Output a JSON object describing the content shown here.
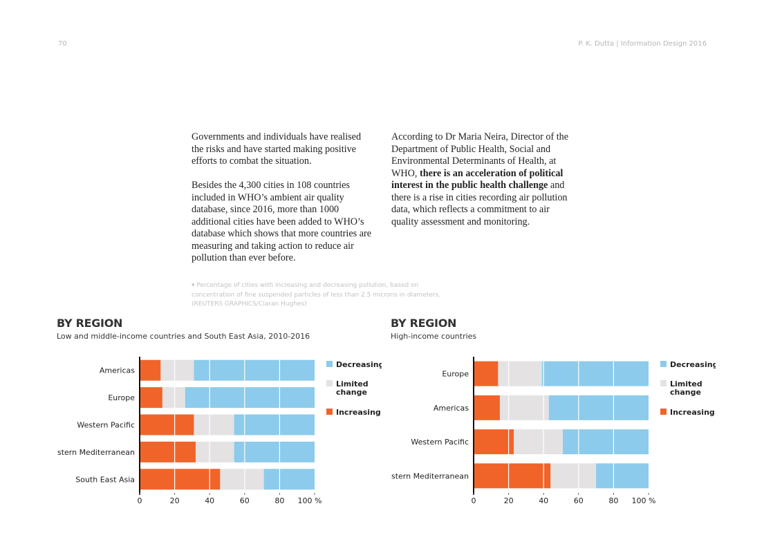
{
  "header": {
    "page_number": "70",
    "running_head": "P. K. Dutta | Information Design 2016"
  },
  "text": {
    "left_p1": "Governments and individuals have realised the risks and have started making positive efforts to combat the situation.",
    "left_p2": "Besides the 4,300 cities in 108 countries included in WHO’s ambient air quality database, since 2016, more than 1000 additional cities have been added to WHO’s database which shows that more countries are measuring and taking action to reduce air pollution than ever before.",
    "right_p1_start": "According to Dr Maria Neira, Director of the Department of Public Health, Social and Environmental Determinants of Health, at WHO, ",
    "right_p1_bold": "there is an acceleration of political interest in the public health challenge",
    "right_p1_end": " and there is a rise in cities recording air pollution data, which reflects a commitment to air quality assessment and monitoring."
  },
  "caption": {
    "line1": "▾ Percentage of cities with increasing and decreasing pollution, based on",
    "line2": "concentration of fine suspended particles of less than 2.5 microns in diameters.",
    "line3": "(REUTERS GRAPHICS/Ciaran Hughes)"
  },
  "colors": {
    "increasing": "#f0642a",
    "limited": "#e4e2e2",
    "decreasing": "#8ccbeb",
    "axis": "#111111",
    "grid": "#ffffff"
  },
  "chart_data": [
    {
      "type": "bar",
      "orientation": "horizontal",
      "stacked": true,
      "title": "BY REGION",
      "subtitle": "Low and middle-income countries and South East Asia, 2010-2016",
      "categories": [
        "Americas",
        "Europe",
        "Western Pacific",
        "Eastern Mediterranean",
        "South East Asia"
      ],
      "series": [
        {
          "name": "Increasing",
          "values": [
            12,
            13,
            31,
            32,
            46
          ]
        },
        {
          "name": "Limited change",
          "values": [
            19,
            13,
            23,
            22,
            25
          ]
        },
        {
          "name": "Decreasing",
          "values": [
            69,
            74,
            46,
            46,
            29
          ]
        }
      ],
      "legend": [
        "Decreasing",
        "Limited change",
        "Increasing"
      ],
      "legend_position": "right",
      "x_ticks": [
        "0",
        "20",
        "40",
        "60",
        "80",
        "100 %"
      ],
      "xlim": [
        0,
        100
      ]
    },
    {
      "type": "bar",
      "orientation": "horizontal",
      "stacked": true,
      "title": "BY REGION",
      "subtitle": "High-income countries",
      "categories": [
        "Europe",
        "Americas",
        "Western Pacific",
        "Eastern Mediterranean"
      ],
      "series": [
        {
          "name": "Increasing",
          "values": [
            14,
            15,
            23,
            44
          ]
        },
        {
          "name": "Limited change",
          "values": [
            25,
            28,
            28,
            26
          ]
        },
        {
          "name": "Decreasing",
          "values": [
            61,
            57,
            49,
            30
          ]
        }
      ],
      "legend": [
        "Decreasing",
        "Limited change",
        "Increasing"
      ],
      "legend_position": "right",
      "x_ticks": [
        "0",
        "20",
        "40",
        "60",
        "80",
        "100 %"
      ],
      "xlim": [
        0,
        100
      ]
    }
  ]
}
